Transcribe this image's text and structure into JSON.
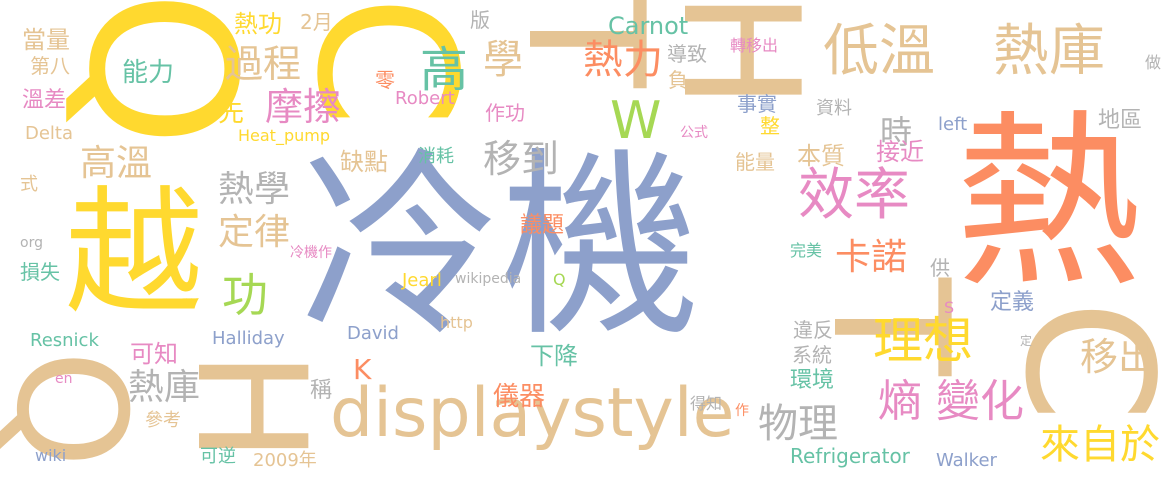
{
  "colors": {
    "blue": "#8da0cb",
    "orange": "#fc8d62",
    "yellow": "#ffd92f",
    "tan": "#e5c494",
    "pink": "#e78ac3",
    "green": "#a6d854",
    "teal": "#66c2a5",
    "gray": "#b3b3b3"
  },
  "words": [
    {
      "text": "冷機",
      "color": "blue"
    },
    {
      "text": "熱",
      "color": "orange"
    },
    {
      "text": "越",
      "color": "yellow"
    },
    {
      "text": "Q",
      "color": "yellow"
    },
    {
      "text": "C",
      "color": "yellow"
    },
    {
      "text": "T",
      "color": "tan"
    },
    {
      "text": "H",
      "color": "tan"
    },
    {
      "text": "T",
      "color": "tan"
    },
    {
      "text": "C",
      "color": "tan"
    },
    {
      "text": "Q",
      "color": "tan"
    },
    {
      "text": "H",
      "color": "tan"
    },
    {
      "text": "displaystyle",
      "color": "tan"
    },
    {
      "text": "低溫",
      "color": "tan"
    },
    {
      "text": "熱庫",
      "color": "tan"
    },
    {
      "text": "效率",
      "color": "pink"
    },
    {
      "text": "理想",
      "color": "yellow"
    },
    {
      "text": "W",
      "color": "green"
    },
    {
      "text": "高",
      "color": "teal"
    },
    {
      "text": "學",
      "color": "tan"
    },
    {
      "text": "熱力",
      "color": "orange"
    },
    {
      "text": "Carnot",
      "color": "teal"
    },
    {
      "text": "過程",
      "color": "tan"
    },
    {
      "text": "摩擦",
      "color": "pink"
    },
    {
      "text": "功",
      "color": "green"
    },
    {
      "text": "熱學",
      "color": "gray"
    },
    {
      "text": "定律",
      "color": "tan"
    },
    {
      "text": "移到",
      "color": "gray"
    },
    {
      "text": "高溫",
      "color": "tan"
    },
    {
      "text": "熱庫",
      "color": "gray"
    },
    {
      "text": "熵",
      "color": "pink"
    },
    {
      "text": "變化",
      "color": "pink"
    },
    {
      "text": "來自於",
      "color": "yellow"
    },
    {
      "text": "移出",
      "color": "tan"
    },
    {
      "text": "卡諾",
      "color": "orange"
    },
    {
      "text": "物理",
      "color": "gray"
    },
    {
      "text": "時",
      "color": "gray"
    },
    {
      "text": "能力",
      "color": "teal"
    },
    {
      "text": "熱功",
      "color": "yellow"
    },
    {
      "text": "當量",
      "color": "tan"
    },
    {
      "text": "2月",
      "color": "tan"
    },
    {
      "text": "版",
      "color": "gray"
    },
    {
      "text": "導致",
      "color": "gray"
    },
    {
      "text": "轉移出",
      "color": "pink"
    },
    {
      "text": "做",
      "color": "gray"
    },
    {
      "text": "第八",
      "color": "tan"
    },
    {
      "text": "溫差",
      "color": "pink"
    },
    {
      "text": "先",
      "color": "yellow"
    },
    {
      "text": "零",
      "color": "orange"
    },
    {
      "text": "負",
      "color": "tan"
    },
    {
      "text": "Robert",
      "color": "pink"
    },
    {
      "text": "作功",
      "color": "pink"
    },
    {
      "text": "事實",
      "color": "blue"
    },
    {
      "text": "整",
      "color": "yellow"
    },
    {
      "text": "資料",
      "color": "gray"
    },
    {
      "text": "left",
      "color": "blue"
    },
    {
      "text": "地區",
      "color": "gray"
    },
    {
      "text": "Delta",
      "color": "tan"
    },
    {
      "text": "Heat_pump",
      "color": "yellow"
    },
    {
      "text": "公式",
      "color": "pink"
    },
    {
      "text": "缺點",
      "color": "tan"
    },
    {
      "text": "消耗",
      "color": "teal"
    },
    {
      "text": "能量",
      "color": "tan"
    },
    {
      "text": "本質",
      "color": "tan"
    },
    {
      "text": "接近",
      "color": "pink"
    },
    {
      "text": "式",
      "color": "tan"
    },
    {
      "text": "議題",
      "color": "orange"
    },
    {
      "text": "org",
      "color": "gray"
    },
    {
      "text": "冷機作",
      "color": "pink"
    },
    {
      "text": "完美",
      "color": "teal"
    },
    {
      "text": "損失",
      "color": "teal"
    },
    {
      "text": "Jearl",
      "color": "yellow"
    },
    {
      "text": "wikipedia",
      "color": "gray"
    },
    {
      "text": "Q",
      "color": "green"
    },
    {
      "text": "供",
      "color": "gray"
    },
    {
      "text": "S",
      "color": "pink"
    },
    {
      "text": "定義",
      "color": "blue"
    },
    {
      "text": "Resnick",
      "color": "teal"
    },
    {
      "text": "Halliday",
      "color": "blue"
    },
    {
      "text": "David",
      "color": "blue"
    },
    {
      "text": "http",
      "color": "tan"
    },
    {
      "text": "違反",
      "color": "gray"
    },
    {
      "text": "系統",
      "color": "gray"
    },
    {
      "text": "定",
      "color": "gray"
    },
    {
      "text": "可知",
      "color": "pink"
    },
    {
      "text": "K",
      "color": "orange"
    },
    {
      "text": "下降",
      "color": "teal"
    },
    {
      "text": "環境",
      "color": "teal"
    },
    {
      "text": "en",
      "color": "pink"
    },
    {
      "text": "稱",
      "color": "gray"
    },
    {
      "text": "儀器",
      "color": "orange"
    },
    {
      "text": "參考",
      "color": "tan"
    },
    {
      "text": "得知",
      "color": "gray"
    },
    {
      "text": "作",
      "color": "orange"
    },
    {
      "text": "wiki",
      "color": "blue"
    },
    {
      "text": "可逆",
      "color": "teal"
    },
    {
      "text": "2009年",
      "color": "tan"
    },
    {
      "text": "Refrigerator",
      "color": "teal"
    },
    {
      "text": "Walker",
      "color": "blue"
    }
  ]
}
